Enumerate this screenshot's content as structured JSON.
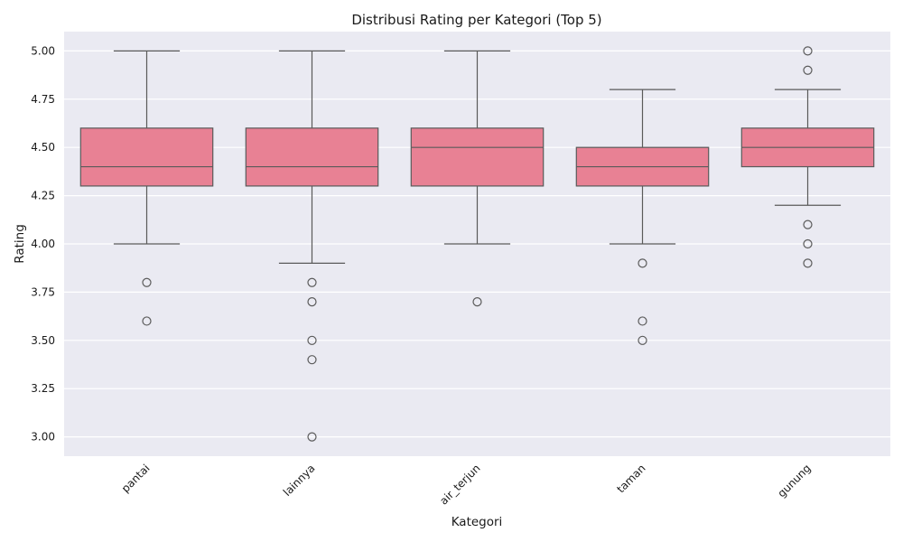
{
  "chart_data": {
    "type": "box",
    "title": "Distribusi Rating per Kategori (Top 5)",
    "xlabel": "Kategori",
    "ylabel": "Rating",
    "ylim": [
      2.9,
      5.1
    ],
    "yticks": [
      3.0,
      3.25,
      3.5,
      3.75,
      4.0,
      4.25,
      4.5,
      4.75,
      5.0
    ],
    "ytick_labels": [
      "3.00",
      "3.25",
      "3.50",
      "3.75",
      "4.00",
      "4.25",
      "4.50",
      "4.75",
      "5.00"
    ],
    "grid": true,
    "box_color": "#e88194",
    "edge_color": "#5a5a5a",
    "background": "#eaeaf2",
    "categories": [
      "pantai",
      "lainnya",
      "air_terjun",
      "taman",
      "gunung"
    ],
    "boxes": [
      {
        "whisker_low": 4.0,
        "q1": 4.3,
        "median": 4.4,
        "q3": 4.6,
        "whisker_high": 5.0,
        "outliers": [
          3.8,
          3.6
        ]
      },
      {
        "whisker_low": 3.9,
        "q1": 4.3,
        "median": 4.4,
        "q3": 4.6,
        "whisker_high": 5.0,
        "outliers": [
          3.8,
          3.7,
          3.5,
          3.4,
          3.0
        ]
      },
      {
        "whisker_low": 4.0,
        "q1": 4.3,
        "median": 4.5,
        "q3": 4.6,
        "whisker_high": 5.0,
        "outliers": [
          3.7
        ]
      },
      {
        "whisker_low": 4.0,
        "q1": 4.3,
        "median": 4.4,
        "q3": 4.5,
        "whisker_high": 4.8,
        "outliers": [
          3.9,
          3.6,
          3.5
        ]
      },
      {
        "whisker_low": 4.2,
        "q1": 4.4,
        "median": 4.5,
        "q3": 4.6,
        "whisker_high": 4.8,
        "outliers": [
          5.0,
          4.9,
          4.1,
          4.0,
          3.9
        ]
      }
    ]
  }
}
